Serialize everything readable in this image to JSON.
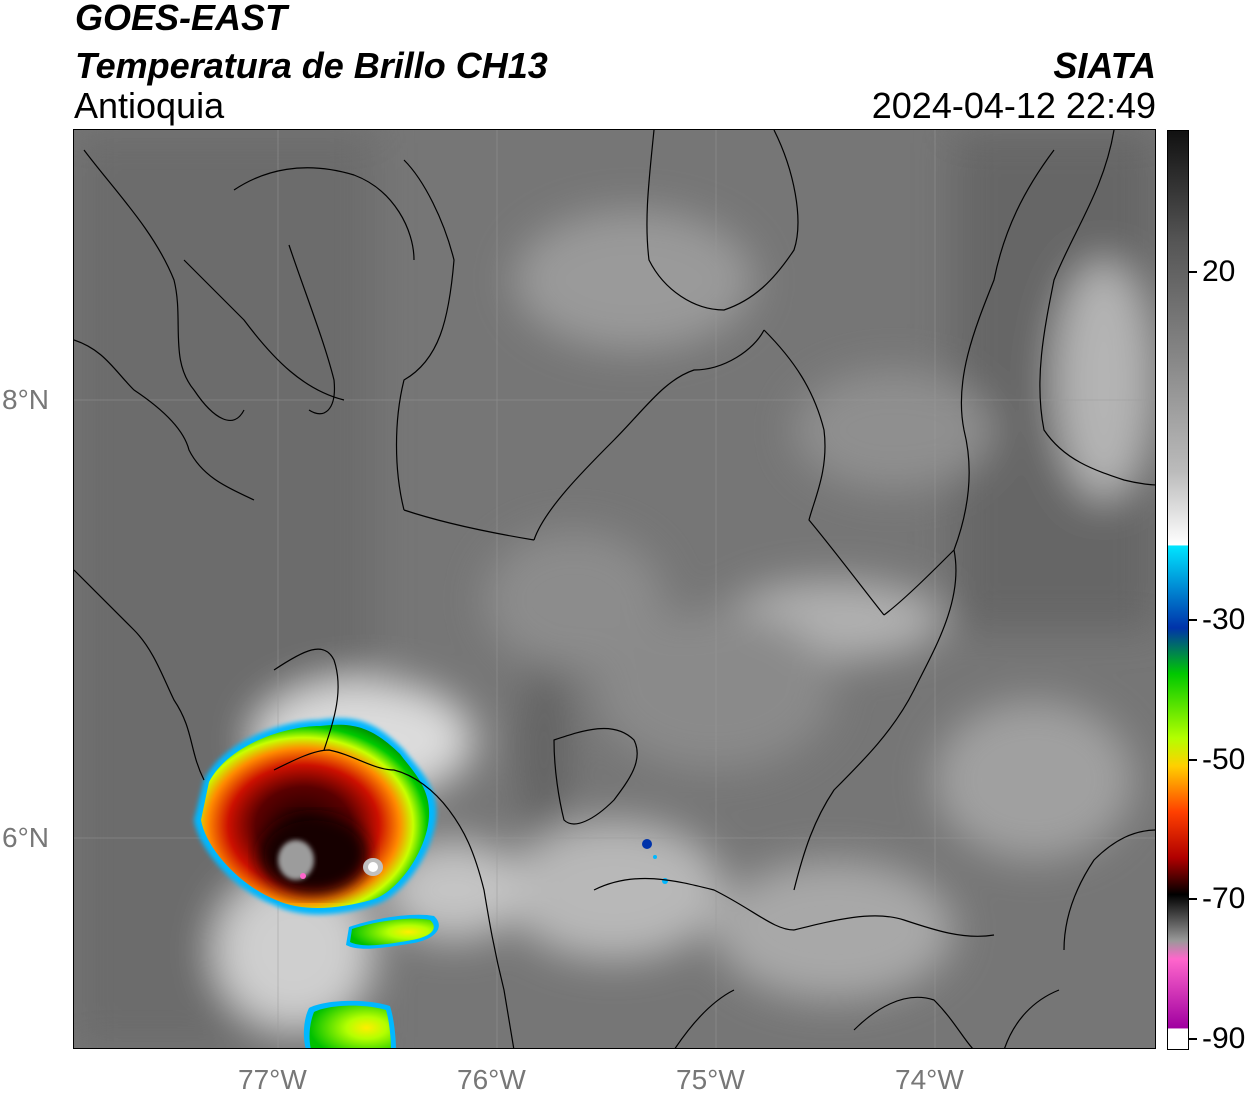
{
  "header": {
    "satellite": "GOES-EAST",
    "product": "Temperatura de Brillo CH13",
    "brand": "SIATA",
    "region": "Antioquia",
    "datetime": "2024-04-12 22:49"
  },
  "map": {
    "lat_ticks": [
      "8°N",
      "6°N"
    ],
    "lon_ticks": [
      "77°W",
      "76°W",
      "75°W",
      "74°W"
    ],
    "gridlines": true,
    "storm_core_color": "#3a0000",
    "land_gray": "#737373"
  },
  "colorbar": {
    "labels": [
      "20",
      "-30",
      "-50",
      "-70",
      "-90"
    ],
    "stops": [
      "#111111",
      "#555555",
      "#888888",
      "#bbbbbb",
      "#ffffff",
      "#00e5ff",
      "#0033aa",
      "#00c800",
      "#b4ff00",
      "#ffd000",
      "#ff4000",
      "#b00000",
      "#000000",
      "#999999",
      "#ff66cc",
      "#a000a0"
    ]
  }
}
